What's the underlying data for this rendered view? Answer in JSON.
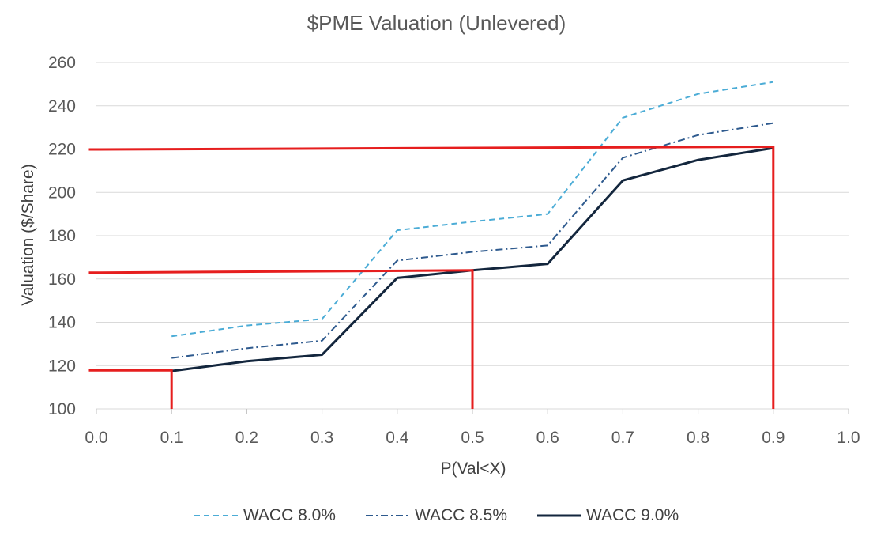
{
  "chart_data": {
    "type": "line",
    "title": "$PME Valuation (Unlevered)",
    "xlabel": "P(Val<X)",
    "ylabel": "Valuation ($/Share)",
    "xlim": [
      0.0,
      1.0
    ],
    "ylim": [
      100,
      260
    ],
    "x_ticks": [
      "0.0",
      "0.1",
      "0.2",
      "0.3",
      "0.4",
      "0.5",
      "0.6",
      "0.7",
      "0.8",
      "0.9",
      "1.0"
    ],
    "y_ticks": [
      "100",
      "120",
      "140",
      "160",
      "180",
      "200",
      "220",
      "240",
      "260"
    ],
    "x": [
      0.1,
      0.2,
      0.3,
      0.4,
      0.5,
      0.6,
      0.7,
      0.8,
      0.9
    ],
    "series": [
      {
        "name": "WACC 8.0%",
        "color": "#4bacd6",
        "dash": "dash",
        "values": [
          133.5,
          138.5,
          141.5,
          182.5,
          186.5,
          190,
          234.5,
          245.5,
          251
        ]
      },
      {
        "name": "WACC 8.5%",
        "color": "#2e5a8e",
        "dash": "dashdot",
        "values": [
          123.5,
          128,
          131.5,
          168.5,
          172.5,
          175.5,
          216,
          226.5,
          232
        ]
      },
      {
        "name": "WACC 9.0%",
        "color": "#13263d",
        "dash": "solid",
        "values": [
          117.5,
          122,
          125,
          160.5,
          164,
          167,
          205.5,
          215,
          220.5
        ]
      }
    ],
    "annotations": [
      {
        "name": "p10-guide",
        "color": "#e61e1e",
        "points": [
          [
            -0.01,
            117.8
          ],
          [
            0.1,
            117.8
          ],
          [
            0.1,
            100
          ]
        ]
      },
      {
        "name": "p50-guide",
        "color": "#e61e1e",
        "points": [
          [
            -0.01,
            162.9
          ],
          [
            0.5,
            164
          ],
          [
            0.5,
            100
          ]
        ]
      },
      {
        "name": "p90-guide",
        "color": "#e61e1e",
        "points": [
          [
            -0.01,
            219.8
          ],
          [
            0.9,
            221.1
          ],
          [
            0.9,
            100
          ]
        ]
      }
    ],
    "grid": true,
    "legend": "bottom"
  }
}
